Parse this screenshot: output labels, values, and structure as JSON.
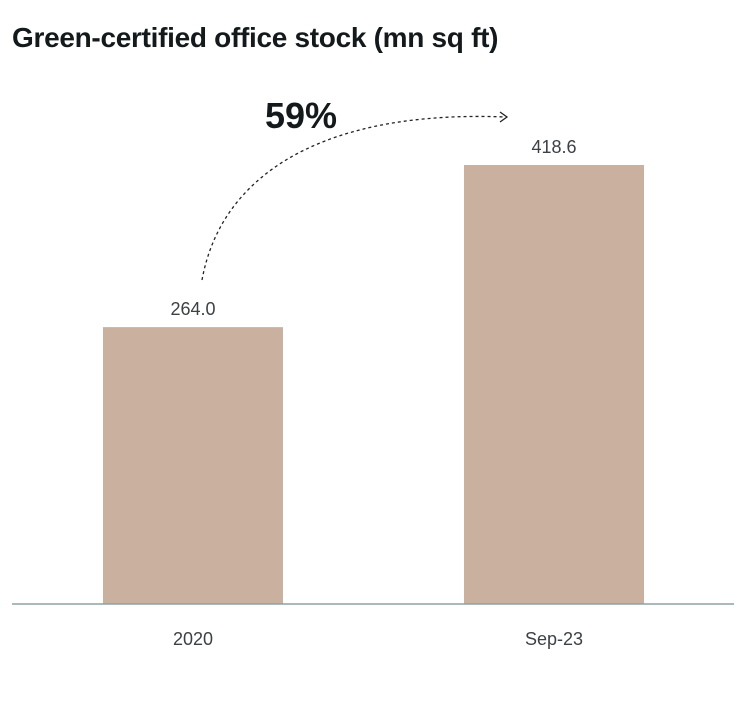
{
  "chart_data": {
    "type": "bar",
    "title": "Green-certified office stock (mn sq ft)",
    "categories": [
      "2020",
      "Sep-23"
    ],
    "values": [
      264.0,
      418.6
    ],
    "value_labels": [
      "264.0",
      "418.6"
    ],
    "annotation": "59%",
    "ylim": [
      0,
      440
    ],
    "grid": false,
    "colors": {
      "bar": "#c9b09f",
      "axis": "#8fa0a6",
      "text": "#3c4145",
      "title": "#14191c"
    }
  }
}
